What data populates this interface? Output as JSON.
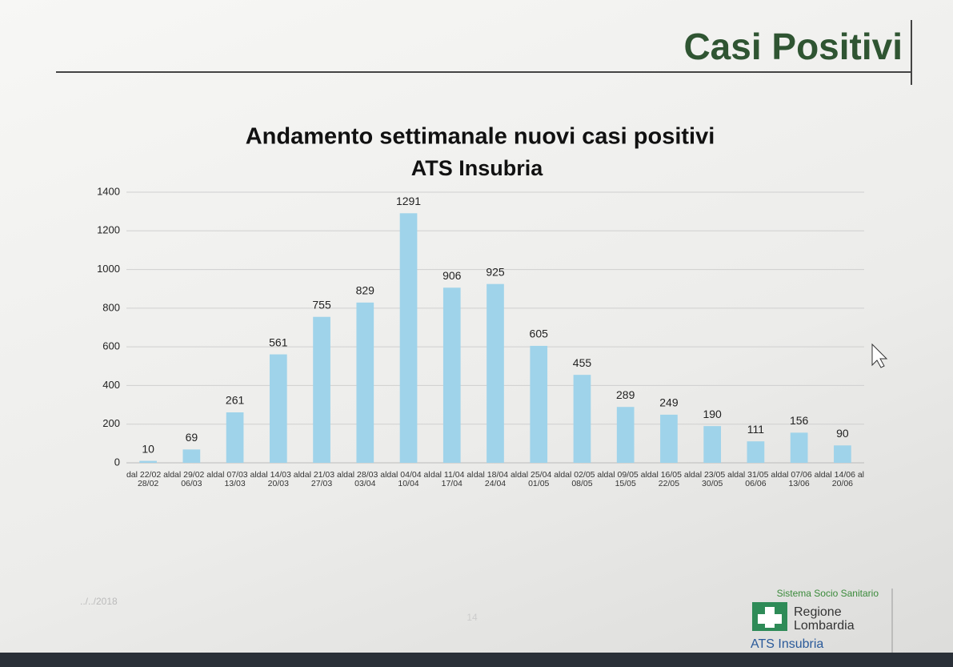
{
  "slide": {
    "title": "Casi Positivi",
    "date": "../../2018",
    "page": "14",
    "footer": {
      "system": "Sistema Socio Sanitario",
      "region": "Regione",
      "region2": "Lombardia",
      "agency": "ATS Insubria"
    }
  },
  "chart_data": {
    "type": "bar",
    "title": "Andamento settimanale nuovi casi positivi",
    "subtitle": "ATS Insubria",
    "categories": [
      "dal 22/02 al 28/02",
      "dal 29/02 al 06/03",
      "dal 07/03 al 13/03",
      "dal 14/03 al 20/03",
      "dal 21/03 al 27/03",
      "dal 28/03 al 03/04",
      "dal 04/04 al 10/04",
      "dal 11/04 al 17/04",
      "dal 18/04 al 24/04",
      "dal 25/04 al 01/05",
      "dal 02/05 al 08/05",
      "dal 09/05 al 15/05",
      "dal 16/05 al 22/05",
      "dal 23/05 al 30/05",
      "dal 31/05 al 06/06",
      "dal 07/06 al 13/06",
      "dal 14/06 al 20/06"
    ],
    "values": [
      10,
      69,
      261,
      561,
      755,
      829,
      1291,
      906,
      925,
      605,
      455,
      289,
      249,
      190,
      111,
      156,
      90
    ],
    "color": "#9fd3ea",
    "ylim": [
      0,
      1400
    ],
    "yticks": [
      0,
      200,
      400,
      600,
      800,
      1000,
      1200,
      1400
    ],
    "grid": true
  }
}
